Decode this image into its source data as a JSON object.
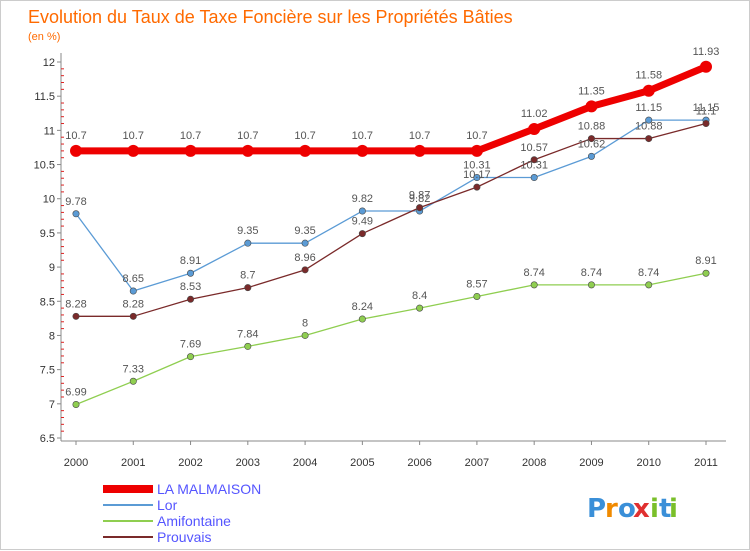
{
  "chart_data": {
    "type": "line",
    "title": "Evolution du Taux de Taxe Foncière sur les Propriétés Bâties",
    "subtitle": "(en %)",
    "xlabel": "",
    "ylabel": "",
    "x": [
      2000,
      2001,
      2002,
      2003,
      2004,
      2005,
      2006,
      2007,
      2008,
      2009,
      2010,
      2011
    ],
    "ylim": [
      6.5,
      12
    ],
    "yticks": [
      6.5,
      7,
      7.5,
      8,
      8.5,
      9,
      9.5,
      10,
      10.5,
      11,
      11.5,
      12
    ],
    "ytick_labels": [
      "6.5",
      "7",
      "7.5",
      "8",
      "8.5",
      "9",
      "9.5",
      "10",
      "10.5",
      "11",
      "11.5",
      "12"
    ],
    "grid": false,
    "legend_position": "bottom-left",
    "series": [
      {
        "name": "LA MALMAISON",
        "color": "#ee0000",
        "values": [
          10.7,
          10.7,
          10.7,
          10.7,
          10.7,
          10.7,
          10.7,
          10.7,
          11.02,
          11.35,
          11.58,
          11.93
        ],
        "labels": [
          "10.7",
          "10.7",
          "10.7",
          "10.7",
          "10.7",
          "10.7",
          "10.7",
          "10.7",
          "11.02",
          "11.35",
          "11.58",
          "11.93"
        ]
      },
      {
        "name": "Lor",
        "color": "#5b9bd5",
        "values": [
          9.78,
          8.65,
          8.91,
          9.35,
          9.35,
          9.82,
          9.82,
          10.31,
          10.31,
          10.62,
          11.15,
          11.15
        ],
        "labels": [
          "9.78",
          "8.65",
          "8.91",
          "9.35",
          "9.35",
          "9.82",
          "9.82",
          "10.31",
          "10.31",
          "10.62",
          "11.15",
          "11.15"
        ]
      },
      {
        "name": "Amifontaine",
        "color": "#8fce50",
        "values": [
          6.99,
          7.33,
          7.69,
          7.84,
          8.0,
          8.24,
          8.4,
          8.57,
          8.74,
          8.74,
          8.74,
          8.91
        ],
        "labels": [
          "6.99",
          "7.33",
          "7.69",
          "7.84",
          "8",
          "8.24",
          "8.4",
          "8.57",
          "8.74",
          "8.74",
          "8.74",
          "8.91"
        ]
      },
      {
        "name": "Prouvais",
        "color": "#7a2a2a",
        "values": [
          8.28,
          8.28,
          8.53,
          8.7,
          8.96,
          9.49,
          9.87,
          10.17,
          10.57,
          10.88,
          10.88,
          11.1
        ],
        "labels": [
          "8.28",
          "8.28",
          "8.53",
          "8.7",
          "8.96",
          "9.49",
          "9.87",
          "10.17",
          "10.57",
          "10.88",
          "10.88",
          "11.1"
        ]
      }
    ]
  },
  "brand": {
    "letters": [
      "P",
      "r",
      "o",
      "x",
      "i",
      "t",
      "i"
    ],
    "colors": [
      "#3a8fd8",
      "#f08a00",
      "#3a8fd8",
      "#e03030",
      "#7abf2a",
      "#3a8fd8",
      "#7abf2a"
    ]
  }
}
